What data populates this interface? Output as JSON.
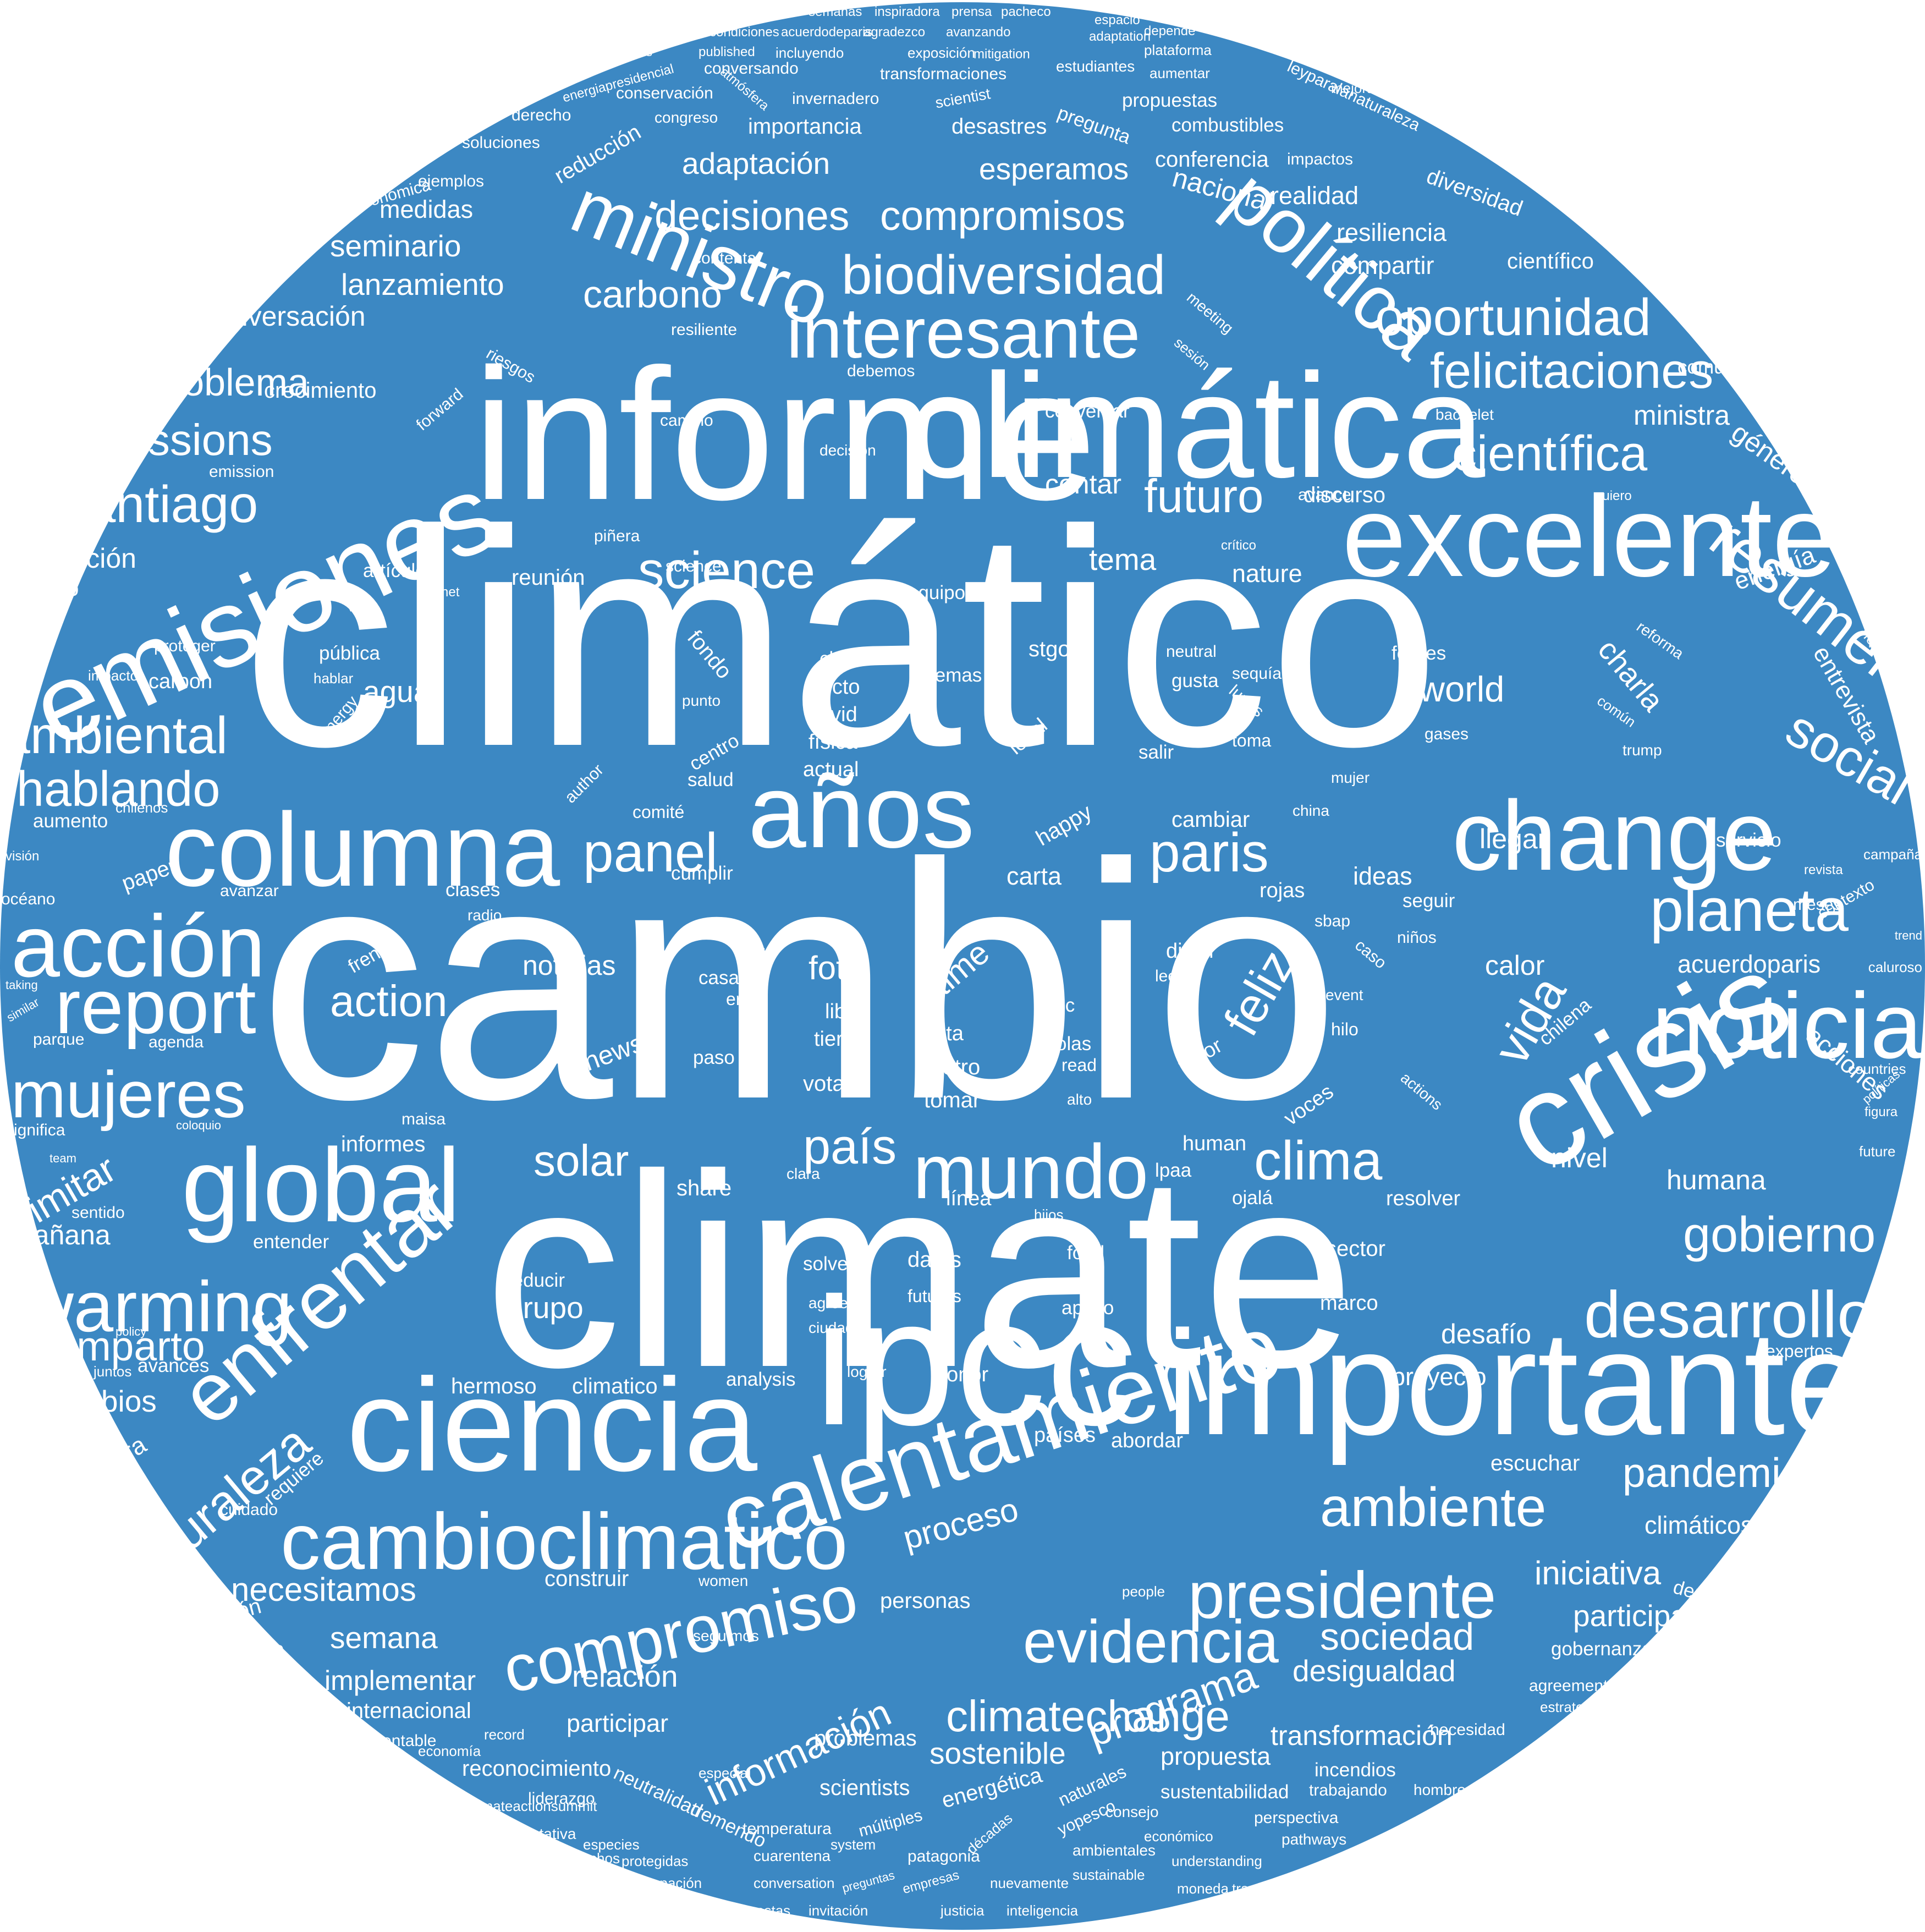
{
  "colors": {
    "background": "#3c88c3",
    "page": "#ffffff",
    "text": "#ffffff"
  },
  "shape": "circle",
  "words": [
    {
      "text": "cambio"
    },
    {
      "text": "climático"
    },
    {
      "text": "climate"
    },
    {
      "text": "informe"
    },
    {
      "text": "climática"
    },
    {
      "text": "ipcc"
    },
    {
      "text": "importante"
    },
    {
      "text": "crisis"
    },
    {
      "text": "ciencia"
    },
    {
      "text": "emisiones"
    },
    {
      "text": "excelente"
    },
    {
      "text": "columna"
    },
    {
      "text": "change"
    },
    {
      "text": "global"
    },
    {
      "text": "calentamiento"
    },
    {
      "text": "años"
    },
    {
      "text": "noticia"
    },
    {
      "text": "cambioclimatico"
    },
    {
      "text": "acción"
    },
    {
      "text": "mundo"
    },
    {
      "text": "enfrentar"
    },
    {
      "text": "presidente"
    },
    {
      "text": "desarrollo"
    },
    {
      "text": "política"
    },
    {
      "text": "compromiso"
    },
    {
      "text": "interesante"
    },
    {
      "text": "ministro"
    },
    {
      "text": "evidencia"
    },
    {
      "text": "mujeres"
    },
    {
      "text": "report"
    },
    {
      "text": "warming"
    },
    {
      "text": "ambiente"
    },
    {
      "text": "biodiversidad"
    },
    {
      "text": "planeta"
    },
    {
      "text": "paris"
    },
    {
      "text": "clima"
    },
    {
      "text": "panel"
    },
    {
      "text": "resumen"
    },
    {
      "text": "felicitaciones"
    },
    {
      "text": "santiago"
    },
    {
      "text": "oportunidad"
    },
    {
      "text": "climatechange"
    },
    {
      "text": "science"
    },
    {
      "text": "emissions"
    },
    {
      "text": "social"
    },
    {
      "text": "pandemia"
    },
    {
      "text": "hablando"
    },
    {
      "text": "ambiental"
    },
    {
      "text": "naturaleza"
    },
    {
      "text": "gobierno"
    },
    {
      "text": "science"
    },
    {
      "text": "problema"
    },
    {
      "text": "decisiones"
    },
    {
      "text": "compromisos"
    },
    {
      "text": "país"
    },
    {
      "text": "comparto"
    },
    {
      "text": "solar"
    },
    {
      "text": "action"
    },
    {
      "text": "científica"
    },
    {
      "text": "futuro"
    },
    {
      "text": "feliz"
    },
    {
      "text": "vida"
    },
    {
      "text": "sociedad"
    },
    {
      "text": "necesitamos"
    },
    {
      "text": "programa"
    },
    {
      "text": "información"
    },
    {
      "text": "carbono"
    },
    {
      "text": "iniciativa"
    },
    {
      "text": "participación"
    },
    {
      "text": "cambios"
    },
    {
      "text": "limitar"
    },
    {
      "text": "experiencia"
    },
    {
      "text": "educación"
    },
    {
      "text": "semana"
    },
    {
      "text": "implementar"
    },
    {
      "text": "relación"
    },
    {
      "text": "desigualdad"
    },
    {
      "text": "transformación"
    },
    {
      "text": "sostenible"
    },
    {
      "text": "proceso"
    },
    {
      "text": "seminario"
    },
    {
      "text": "lanzamiento"
    },
    {
      "text": "conversación"
    },
    {
      "text": "adaptación"
    },
    {
      "text": "esperamos"
    },
    {
      "text": "medidas"
    },
    {
      "text": "nacional"
    },
    {
      "text": "realidad"
    },
    {
      "text": "resiliencia"
    },
    {
      "text": "compartir"
    },
    {
      "text": "científico"
    },
    {
      "text": "ministra"
    },
    {
      "text": "género"
    },
    {
      "text": "ambición"
    },
    {
      "text": "científicos"
    },
    {
      "text": "energía"
    },
    {
      "text": "entrevista"
    },
    {
      "text": "charla"
    },
    {
      "text": "world"
    },
    {
      "text": "acciones"
    },
    {
      "text": "mañana"
    },
    {
      "text": "humana"
    },
    {
      "text": "nivel"
    },
    {
      "text": "desafío"
    },
    {
      "text": "proyecto"
    },
    {
      "text": "calor"
    },
    {
      "text": "acuerdoparis"
    },
    {
      "text": "noticias"
    },
    {
      "text": "foto"
    },
    {
      "text": "time"
    },
    {
      "text": "tema"
    },
    {
      "text": "contar"
    },
    {
      "text": "nature"
    },
    {
      "text": "discurso"
    },
    {
      "text": "avance"
    },
    {
      "text": "reunión"
    },
    {
      "text": "agua"
    },
    {
      "text": "carta"
    },
    {
      "text": "happy"
    },
    {
      "text": "cambiar"
    },
    {
      "text": "llegar"
    },
    {
      "text": "ideas"
    },
    {
      "text": "servicio"
    },
    {
      "text": "registro"
    },
    {
      "text": "crecimiento"
    },
    {
      "text": "desafíos"
    },
    {
      "text": "temperaturas"
    },
    {
      "text": "president"
    },
    {
      "text": "presidenta"
    },
    {
      "text": "comisión"
    },
    {
      "text": "emocionante"
    },
    {
      "text": "emission"
    },
    {
      "text": "aumento"
    },
    {
      "text": "océano"
    },
    {
      "text": "avanzar"
    },
    {
      "text": "frente"
    },
    {
      "text": "parque"
    },
    {
      "text": "agenda"
    },
    {
      "text": "significa"
    },
    {
      "text": "sentido"
    },
    {
      "text": "entender"
    },
    {
      "text": "cambioclimatico"
    },
    {
      "text": "hermoso"
    },
    {
      "text": "historia"
    },
    {
      "text": "muestra"
    },
    {
      "text": "cuidado"
    },
    {
      "text": "requiere"
    },
    {
      "text": "discusión"
    },
    {
      "text": "conocimiento"
    },
    {
      "text": "hacienda"
    },
    {
      "text": "necesaria"
    },
    {
      "text": "declaración"
    },
    {
      "text": "valores"
    },
    {
      "text": "viernes"
    },
    {
      "text": "realmente"
    },
    {
      "text": "permite"
    },
    {
      "text": "públicas"
    },
    {
      "text": "histórico"
    },
    {
      "text": "internacional"
    },
    {
      "text": "sustentable"
    },
    {
      "text": "reconocimiento"
    },
    {
      "text": "record"
    },
    {
      "text": "participar"
    },
    {
      "text": "liderazgo"
    },
    {
      "text": "neutralidad"
    },
    {
      "text": "tremendo"
    },
    {
      "text": "problemas"
    },
    {
      "text": "scientists"
    },
    {
      "text": "energética"
    },
    {
      "text": "personas"
    },
    {
      "text": "climáticos"
    },
    {
      "text": "estudio"
    },
    {
      "text": "democracia"
    },
    {
      "text": "colegas"
    },
    {
      "text": "gobernanza"
    },
    {
      "text": "agreement"
    },
    {
      "text": "estrategia"
    },
    {
      "text": "totalmente"
    },
    {
      "text": "igualdad"
    },
    {
      "text": "humano"
    },
    {
      "text": "propuesta"
    },
    {
      "text": "incendios"
    },
    {
      "text": "trabajando"
    },
    {
      "text": "hombres"
    },
    {
      "text": "transición"
    },
    {
      "text": "sustentabilidad"
    },
    {
      "text": "consejo"
    },
    {
      "text": "perspectiva"
    },
    {
      "text": "económico"
    },
    {
      "text": "pathways"
    },
    {
      "text": "temperatura"
    },
    {
      "text": "cuarentena"
    },
    {
      "text": "patagonia"
    },
    {
      "text": "especies"
    },
    {
      "text": "derechos"
    },
    {
      "text": "protegidas"
    },
    {
      "text": "representativa"
    },
    {
      "text": "longueira"
    },
    {
      "text": "urgente"
    },
    {
      "text": "preocupación"
    },
    {
      "text": "conversation"
    },
    {
      "text": "respuestas"
    },
    {
      "text": "invitación"
    },
    {
      "text": "justicia"
    },
    {
      "text": "inteligencia"
    },
    {
      "text": "moneda"
    },
    {
      "text": "transformar"
    },
    {
      "text": "facultad"
    },
    {
      "text": "produce"
    },
    {
      "text": "environmental"
    },
    {
      "text": "privilegios"
    },
    {
      "text": "construir"
    },
    {
      "text": "women"
    },
    {
      "text": "escuchar"
    },
    {
      "text": "clara"
    },
    {
      "text": "share"
    },
    {
      "text": "datos"
    },
    {
      "text": "futuras"
    },
    {
      "text": "países"
    },
    {
      "text": "abordar"
    },
    {
      "text": "apoyo"
    },
    {
      "text": "marco"
    },
    {
      "text": "reducir"
    },
    {
      "text": "grupo"
    },
    {
      "text": "solve"
    },
    {
      "text": "agree"
    },
    {
      "text": "ciudad"
    },
    {
      "text": "climatico"
    },
    {
      "text": "analysis"
    },
    {
      "text": "lograr"
    },
    {
      "text": "honor"
    },
    {
      "text": "food"
    },
    {
      "text": "sector"
    },
    {
      "text": "línea"
    },
    {
      "text": "resolver"
    },
    {
      "text": "human"
    },
    {
      "text": "lpaa"
    },
    {
      "text": "ojalá"
    },
    {
      "text": "hijos"
    },
    {
      "text": "voces"
    },
    {
      "text": "actions"
    },
    {
      "text": "chilena"
    },
    {
      "text": "votar"
    },
    {
      "text": "tomar"
    },
    {
      "text": "metro"
    },
    {
      "text": "falta"
    },
    {
      "text": "olas"
    },
    {
      "text": "indc"
    },
    {
      "text": "read"
    },
    {
      "text": "alto"
    },
    {
      "text": "favor"
    },
    {
      "text": "difícil"
    },
    {
      "text": "leer"
    },
    {
      "text": "hilo"
    },
    {
      "text": "event"
    },
    {
      "text": "caso"
    },
    {
      "text": "niños"
    },
    {
      "text": "sbap"
    },
    {
      "text": "seguir"
    },
    {
      "text": "rojas"
    },
    {
      "text": "clases"
    },
    {
      "text": "radio"
    },
    {
      "text": "talk"
    },
    {
      "text": "bici"
    },
    {
      "text": "casa"
    },
    {
      "text": "ernc"
    },
    {
      "text": "news"
    },
    {
      "text": "libro"
    },
    {
      "text": "tierra"
    },
    {
      "text": "paso"
    },
    {
      "text": "comité"
    },
    {
      "text": "salud"
    },
    {
      "text": "centro"
    },
    {
      "text": "actual"
    },
    {
      "text": "física"
    },
    {
      "text": "covid"
    },
    {
      "text": "efecto"
    },
    {
      "text": "clave"
    },
    {
      "text": "fondo"
    },
    {
      "text": "punto"
    },
    {
      "text": "temas"
    },
    {
      "text": "stgo"
    },
    {
      "text": "local"
    },
    {
      "text": "salir"
    },
    {
      "text": "siglo"
    },
    {
      "text": "gusta"
    },
    {
      "text": "neutral"
    },
    {
      "text": "toma"
    },
    {
      "text": "lunes"
    },
    {
      "text": "sequía"
    },
    {
      "text": "fósiles"
    },
    {
      "text": "gases"
    },
    {
      "text": "trump"
    },
    {
      "text": "común"
    },
    {
      "text": "reforma"
    },
    {
      "text": "mujer"
    },
    {
      "text": "china"
    },
    {
      "text": "equipo"
    },
    {
      "text": "pública"
    },
    {
      "text": "hablar"
    },
    {
      "text": "energy"
    },
    {
      "text": "carbon"
    },
    {
      "text": "proteger"
    },
    {
      "text": "impacto"
    },
    {
      "text": "paper"
    },
    {
      "text": "author"
    },
    {
      "text": "cumplir"
    },
    {
      "text": "artículo"
    },
    {
      "text": "piñera"
    },
    {
      "text": "matriz"
    },
    {
      "text": "planet"
    },
    {
      "text": "riesgos"
    },
    {
      "text": "forward"
    },
    {
      "text": "camino"
    },
    {
      "text": "decisión"
    },
    {
      "text": "debemos"
    },
    {
      "text": "resiliente"
    },
    {
      "text": "contenta"
    },
    {
      "text": "conversar"
    },
    {
      "text": "bachelet"
    },
    {
      "text": "comunidad"
    },
    {
      "text": "urgencia"
    },
    {
      "text": "contaminación"
    },
    {
      "text": "constitución"
    },
    {
      "text": "especialmente"
    },
    {
      "text": "respuesta"
    },
    {
      "text": "diversidad"
    },
    {
      "text": "transporte"
    },
    {
      "text": "conferencia"
    },
    {
      "text": "impactos"
    },
    {
      "text": "combustibles"
    },
    {
      "text": "propuestas"
    },
    {
      "text": "desastres"
    },
    {
      "text": "pregunta"
    },
    {
      "text": "importancia"
    },
    {
      "text": "invernadero"
    },
    {
      "text": "conservación"
    },
    {
      "text": "congreso"
    },
    {
      "text": "derecho"
    },
    {
      "text": "soluciones"
    },
    {
      "text": "reducción"
    },
    {
      "text": "ejemplos"
    },
    {
      "text": "económica"
    },
    {
      "text": "presentación"
    },
    {
      "text": "bienestar"
    },
    {
      "text": "relevante"
    },
    {
      "text": "mitigación"
    },
    {
      "text": "evolución"
    },
    {
      "text": "aprobación"
    },
    {
      "text": "encontrar"
    },
    {
      "text": "ministerio"
    },
    {
      "text": "atribución"
    },
    {
      "text": "protección"
    },
    {
      "text": "beneficios"
    },
    {
      "text": "fundamental"
    },
    {
      "text": "diálogo"
    },
    {
      "text": "aspectos"
    },
    {
      "text": "entrando"
    },
    {
      "text": "sábado"
    },
    {
      "text": "ciencias"
    },
    {
      "text": "amazing"
    },
    {
      "text": "mantener"
    },
    {
      "text": "tracker"
    },
    {
      "text": "visión"
    },
    {
      "text": "chilenos"
    },
    {
      "text": "taking"
    },
    {
      "text": "similar"
    },
    {
      "text": "team"
    },
    {
      "text": "vuelta"
    },
    {
      "text": "policy"
    },
    {
      "text": "juntos"
    },
    {
      "text": "avances"
    },
    {
      "text": "público"
    },
    {
      "text": "escazú"
    },
    {
      "text": "necesita"
    },
    {
      "text": "perspective"
    },
    {
      "text": "honrada"
    },
    {
      "text": "instrumentos"
    },
    {
      "text": "decrecimiento"
    },
    {
      "text": "vergüenza"
    },
    {
      "text": "efectos"
    },
    {
      "text": "eventos"
    },
    {
      "text": "esperanza"
    },
    {
      "text": "recuperación"
    },
    {
      "text": "economía"
    },
    {
      "text": "todoas"
    },
    {
      "text": "completo"
    },
    {
      "text": "humanos"
    },
    {
      "text": "development"
    },
    {
      "text": "climateactionsummit"
    },
    {
      "text": "especial"
    },
    {
      "text": "múltiples"
    },
    {
      "text": "system"
    },
    {
      "text": "empresas"
    },
    {
      "text": "preguntas"
    },
    {
      "text": "nuevamente"
    },
    {
      "text": "décadas"
    },
    {
      "text": "naturales"
    },
    {
      "text": "yopesco"
    },
    {
      "text": "ambientales"
    },
    {
      "text": "sustainable"
    },
    {
      "text": "understanding"
    },
    {
      "text": "seguimos"
    },
    {
      "text": "necesidad"
    },
    {
      "text": "escuchar"
    },
    {
      "text": "people"
    },
    {
      "text": "generaciones"
    },
    {
      "text": "ciudadana"
    },
    {
      "text": "energía"
    },
    {
      "text": "constituyente"
    },
    {
      "text": "aportar"
    },
    {
      "text": "ambition"
    },
    {
      "text": "decision"
    },
    {
      "text": "reduce"
    },
    {
      "text": "expertos"
    },
    {
      "text": "figura"
    },
    {
      "text": "future"
    },
    {
      "text": "countries"
    },
    {
      "text": "políticas"
    },
    {
      "text": "contexto"
    },
    {
      "text": "campaña"
    },
    {
      "text": "meses"
    },
    {
      "text": "revista"
    },
    {
      "text": "trend"
    },
    {
      "text": "caluroso"
    },
    {
      "text": "mensaje"
    },
    {
      "text": "viable"
    },
    {
      "text": "nerdnite"
    },
    {
      "text": "alemania"
    },
    {
      "text": "quiero"
    },
    {
      "text": "crítico"
    },
    {
      "text": "meeting"
    },
    {
      "text": "sesión"
    },
    {
      "text": "conversando"
    },
    {
      "text": "mitigation"
    },
    {
      "text": "incluyendo"
    },
    {
      "text": "published"
    },
    {
      "text": "candidatos"
    },
    {
      "text": "desigualdades"
    },
    {
      "text": "southern"
    },
    {
      "text": "energiapresidencial"
    },
    {
      "text": "transformaciones"
    },
    {
      "text": "exposición"
    },
    {
      "text": "estudiantes"
    },
    {
      "text": "aumentar"
    },
    {
      "text": "plataforma"
    },
    {
      "text": "adaptation"
    },
    {
      "text": "scientist"
    },
    {
      "text": "extrema"
    },
    {
      "text": "condiciones"
    },
    {
      "text": "acuerdodeparis"
    },
    {
      "text": "agradezco"
    },
    {
      "text": "avanzando"
    },
    {
      "text": "ministros"
    },
    {
      "text": "puertodeideas"
    },
    {
      "text": "semanas"
    },
    {
      "text": "inspiradora"
    },
    {
      "text": "prensa"
    },
    {
      "text": "pacheco"
    },
    {
      "text": "espacio"
    },
    {
      "text": "depende"
    },
    {
      "text": "leaders"
    },
    {
      "text": "transversal"
    },
    {
      "text": "personal"
    },
    {
      "text": "chileno"
    },
    {
      "text": "evaluación"
    },
    {
      "text": "transition"
    },
    {
      "text": "mejorar"
    },
    {
      "text": "cámara"
    },
    {
      "text": "efectivamente"
    },
    {
      "text": "convención"
    },
    {
      "text": "tremenda"
    },
    {
      "text": "fantástico"
    },
    {
      "text": "minister"
    },
    {
      "text": "tecnología"
    },
    {
      "text": "ciudades"
    },
    {
      "text": "complejo"
    },
    {
      "text": "anuncia"
    },
    {
      "text": "influencia"
    },
    {
      "text": "electoral"
    },
    {
      "text": "propósito"
    },
    {
      "text": "resultados"
    },
    {
      "text": "medida"
    },
    {
      "text": "millones"
    },
    {
      "text": "leyparalanaturaleza"
    },
    {
      "text": "atmósfera"
    },
    {
      "text": "maisa"
    },
    {
      "text": "informes"
    },
    {
      "text": "coloquio"
    }
  ]
}
